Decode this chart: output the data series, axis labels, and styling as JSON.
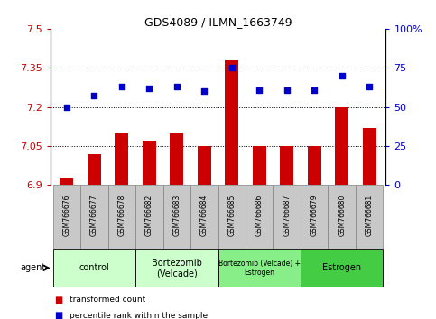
{
  "title": "GDS4089 / ILMN_1663749",
  "samples": [
    "GSM766676",
    "GSM766677",
    "GSM766678",
    "GSM766682",
    "GSM766683",
    "GSM766684",
    "GSM766685",
    "GSM766686",
    "GSM766687",
    "GSM766679",
    "GSM766680",
    "GSM766681"
  ],
  "bar_values": [
    6.93,
    7.02,
    7.1,
    7.07,
    7.1,
    7.05,
    7.38,
    7.05,
    7.05,
    7.05,
    7.2,
    7.12
  ],
  "dot_values": [
    50,
    57,
    63,
    62,
    63,
    60,
    75,
    61,
    61,
    61,
    70,
    63
  ],
  "ylim_left": [
    6.9,
    7.5
  ],
  "ylim_right": [
    0,
    100
  ],
  "yticks_left": [
    6.9,
    7.05,
    7.2,
    7.35,
    7.5
  ],
  "yticks_right": [
    0,
    25,
    50,
    75,
    100
  ],
  "ytick_labels_left": [
    "6.9",
    "7.05",
    "7.2",
    "7.35",
    "7.5"
  ],
  "ytick_labels_right": [
    "0",
    "25",
    "50",
    "75",
    "100%"
  ],
  "bar_color": "#cc0000",
  "dot_color": "#0000cc",
  "bar_baseline": 6.9,
  "groups": [
    {
      "label": "control",
      "start": 0,
      "end": 3,
      "color": "#ccffcc"
    },
    {
      "label": "Bortezomib\n(Velcade)",
      "start": 3,
      "end": 6,
      "color": "#ccffcc"
    },
    {
      "label": "Bortezomib (Velcade) +\nEstrogen",
      "start": 6,
      "end": 9,
      "color": "#88ee88"
    },
    {
      "label": "Estrogen",
      "start": 9,
      "end": 12,
      "color": "#44cc44"
    }
  ],
  "agent_label": "agent",
  "legend_bar_label": "transformed count",
  "legend_dot_label": "percentile rank within the sample",
  "bar_color_legend": "#cc0000",
  "dot_color_legend": "#0000cc",
  "left_tick_color": "#cc0000",
  "right_tick_color": "#0000cc",
  "sample_bg_color": "#c8c8c8",
  "sample_edge_color": "#808080"
}
